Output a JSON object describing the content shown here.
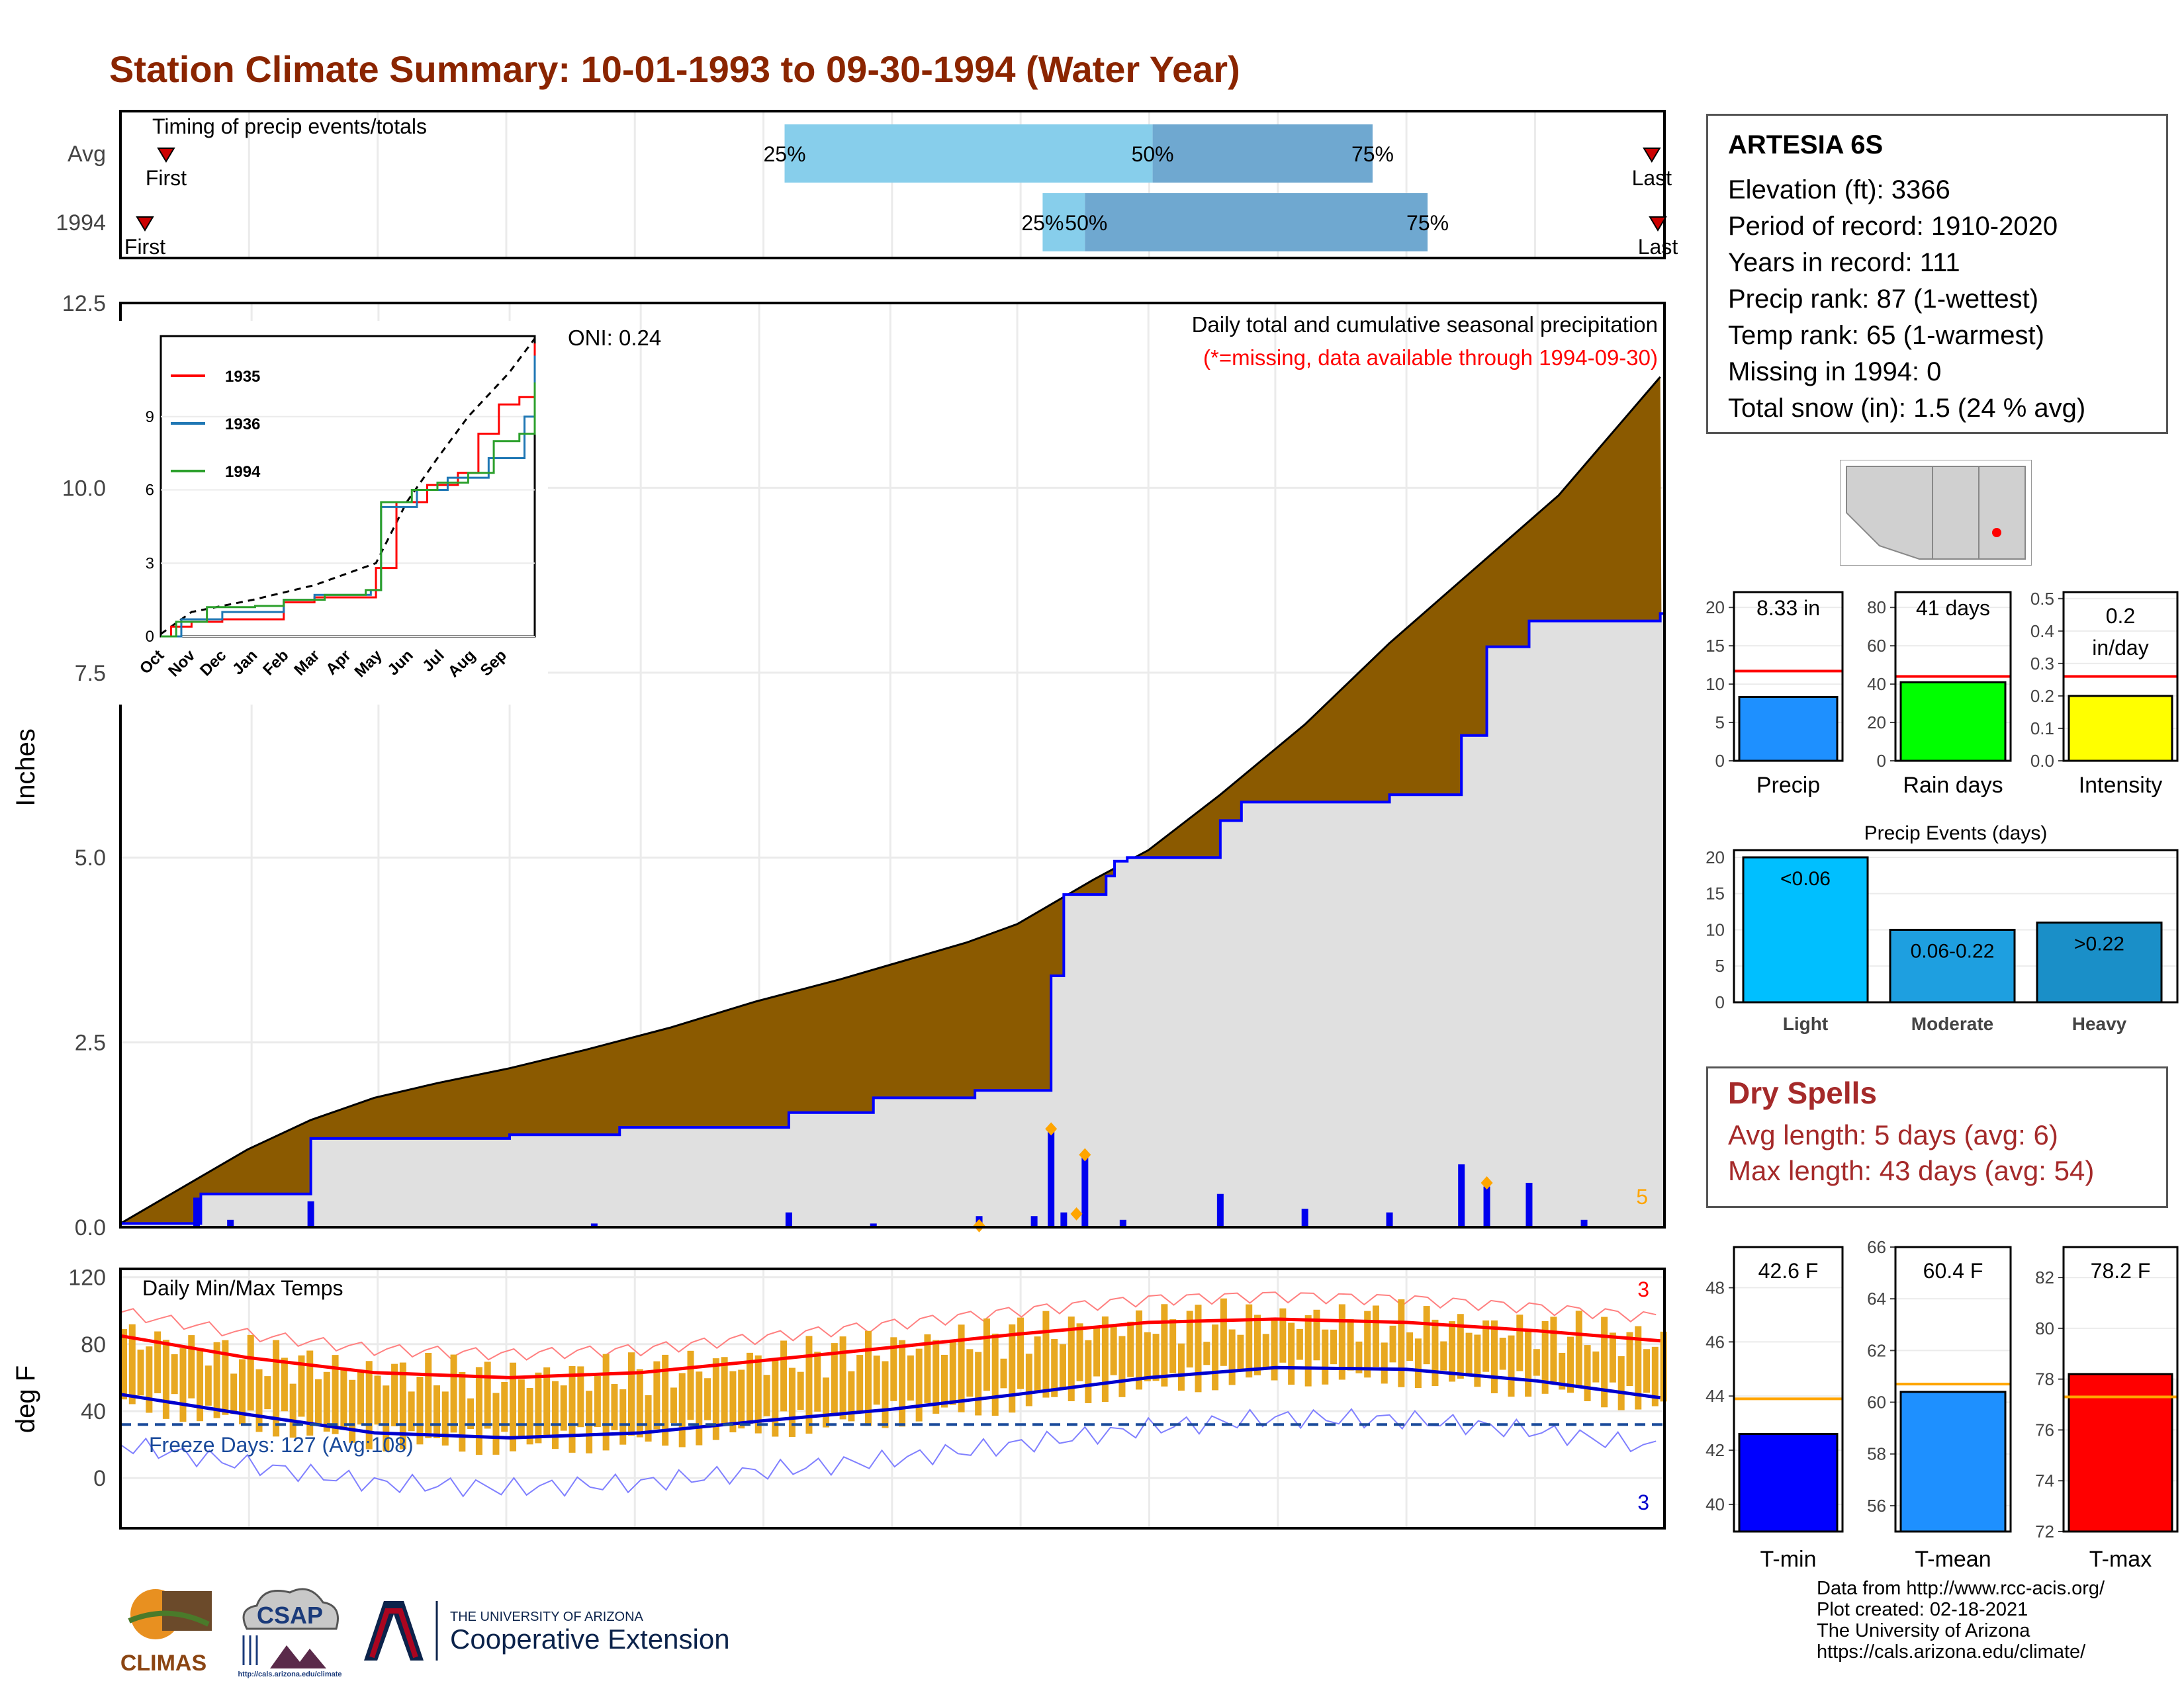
{
  "page_title": "Station Climate Summary: 10-01-1993 to 09-30-1994 (Water Year)",
  "station": {
    "name": "ARTESIA 6S",
    "lines": [
      "Elevation (ft): 3366",
      "Period of record: 1910-2020",
      "Years in record: 111",
      "Precip rank: 87 (1-wettest)",
      "Temp rank: 65 (1-warmest)",
      "Missing in 1994: 0",
      "Total snow (in): 1.5 (24 % avg)"
    ]
  },
  "dry_spells": {
    "title": "Dry Spells",
    "avg": "Avg length: 5 days (avg: 6)",
    "max": "Max length: 43 days (avg: 54)"
  },
  "credits": [
    "Data from http://www.rcc-acis.org/",
    "Plot created: 02-18-2021",
    "The University of Arizona",
    "https://cals.arizona.edu/climate/"
  ],
  "logos": {
    "climas": "CLIMAS",
    "csap": "CSAP",
    "csap_url": "http://cals.arizona.edu/climate",
    "ua_small": "THE UNIVERSITY OF ARIZONA",
    "ua_big": "Cooperative Extension"
  },
  "colors": {
    "title": "#8b2500",
    "brown": "#8b5a00",
    "gray_fill": "#e0e0e0",
    "precip_line": "#0000ff",
    "tmax_avg": "#ff0000",
    "tmin_avg": "#0000cd",
    "temp_bar": "#e8a820",
    "light_blue": "#87ceeb",
    "mid_blue": "#6fa8d0"
  },
  "chart_data": [
    {
      "id": "timing",
      "type": "bar",
      "title": "Timing of precip events/totals",
      "rows": [
        {
          "label": "Avg",
          "first": "First",
          "last": "Last",
          "p25": "25%",
          "p50": "50%",
          "p75": "75%",
          "first_day": 5,
          "last_day": 362,
          "q25": 157,
          "q50": 244,
          "q75": 296
        },
        {
          "label": "1994",
          "first": "First",
          "last": "Last",
          "p25": "25%",
          "p50": "50%",
          "p75": "75%",
          "first_day": 0,
          "last_day": 368,
          "q25": 218,
          "q50": 228,
          "q75": 309
        }
      ]
    },
    {
      "id": "precip",
      "type": "area",
      "title": "Daily total and cumulative seasonal precipitation",
      "subtitle": "(*=missing, data available through 1994-09-30)",
      "oni": "ONI: 0.24",
      "ylabel": "Inches",
      "ylim": [
        0,
        12.5
      ],
      "yticks": [
        0.0,
        2.5,
        5.0,
        7.5,
        10.0,
        12.5
      ],
      "ytick_labels": [
        "0.0",
        "2.5",
        "5.0",
        "7.5",
        "10.0",
        "12.5"
      ],
      "months": [
        "Oct",
        "Nov",
        "Dec",
        "Jan",
        "Feb",
        "Mar",
        "Apr",
        "May",
        "Jun",
        "Jul",
        "Aug",
        "Sep"
      ],
      "month_days": [
        0,
        31,
        61,
        92,
        123,
        151,
        182,
        212,
        243,
        273,
        304,
        335
      ],
      "corner_count": "5",
      "avg_cumulative": {
        "x": [
          0,
          15,
          30,
          45,
          60,
          75,
          92,
          110,
          130,
          150,
          170,
          182,
          200,
          212,
          230,
          243,
          260,
          280,
          300,
          320,
          340,
          355,
          364
        ],
        "y": [
          0.05,
          0.55,
          1.05,
          1.45,
          1.75,
          1.95,
          2.15,
          2.4,
          2.7,
          3.05,
          3.35,
          3.55,
          3.85,
          4.1,
          4.7,
          5.1,
          5.85,
          6.8,
          7.9,
          8.9,
          9.9,
          10.9,
          11.5
        ]
      },
      "obs_cumulative": {
        "x": [
          0,
          19,
          45,
          92,
          112,
          118,
          158,
          178,
          202,
          210,
          220,
          221,
          223,
          233,
          235,
          238,
          260,
          265,
          300,
          317,
          323,
          333,
          364
        ],
        "y": [
          0.05,
          0.45,
          1.2,
          1.25,
          1.25,
          1.35,
          1.55,
          1.75,
          1.85,
          1.85,
          3.4,
          3.4,
          4.5,
          4.75,
          4.95,
          5.0,
          5.5,
          5.75,
          5.85,
          6.65,
          7.85,
          8.2,
          8.3
        ]
      },
      "daily": {
        "x": [
          18,
          26,
          45,
          112,
          158,
          178,
          203,
          216,
          220,
          223,
          228,
          237,
          260,
          280,
          300,
          317,
          323,
          333,
          346
        ],
        "y": [
          0.4,
          0.1,
          0.35,
          0.05,
          0.2,
          0.05,
          0.15,
          0.15,
          1.35,
          0.2,
          0.95,
          0.1,
          0.45,
          0.25,
          0.2,
          0.85,
          0.55,
          0.6,
          0.1
        ]
      },
      "inset": {
        "series": [
          {
            "name": "1935",
            "color": "#ff0000"
          },
          {
            "name": "1936",
            "color": "#1f77b4"
          },
          {
            "name": "1994",
            "color": "#2ca02c"
          }
        ],
        "yticks": [
          "0",
          "3",
          "6",
          "9"
        ],
        "xticks": [
          "Oct",
          "Nov",
          "Dec",
          "Jan",
          "Feb",
          "Mar",
          "Apr",
          "May",
          "Jun",
          "Jul",
          "Aug",
          "Sep"
        ]
      }
    },
    {
      "id": "temps",
      "type": "bar",
      "title": "Daily Min/Max Temps",
      "ylabel": "deg F",
      "ylim": [
        -30,
        125
      ],
      "yticks": [
        0,
        40,
        80,
        120
      ],
      "freeze_label": "Freeze Days: 127 (Avg:108)",
      "freeze_line": 32,
      "top_count": "3",
      "bottom_count": "3",
      "months": [
        "Oct",
        "Nov",
        "Dec",
        "Jan",
        "Feb",
        "Mar",
        "Apr",
        "May",
        "Jun",
        "Jul",
        "Aug",
        "Sep"
      ],
      "avg_max": {
        "x": [
          0,
          30,
          60,
          92,
          123,
          151,
          182,
          212,
          243,
          273,
          304,
          335,
          364
        ],
        "y": [
          85,
          72,
          63,
          60,
          63,
          70,
          78,
          86,
          93,
          95,
          93,
          88,
          82
        ]
      },
      "avg_min": {
        "x": [
          0,
          30,
          60,
          92,
          123,
          151,
          182,
          212,
          243,
          273,
          304,
          335,
          364
        ],
        "y": [
          50,
          38,
          27,
          24,
          27,
          34,
          41,
          50,
          60,
          66,
          65,
          58,
          48
        ]
      }
    },
    {
      "id": "precip_summary",
      "type": "bar",
      "categories": [
        "Precip",
        "Rain days",
        "Intensity"
      ],
      "values": [
        8.33,
        41,
        0.2
      ],
      "avg": [
        11.7,
        44,
        0.26
      ],
      "value_labels": [
        "8.33 in",
        "41 days",
        "0.2 in/day"
      ],
      "bar_colors": [
        "#1e90ff",
        "#00ff00",
        "#ffff00"
      ],
      "ylims": [
        [
          0,
          22
        ],
        [
          0,
          88
        ],
        [
          0,
          0.52
        ]
      ],
      "yticks": [
        [
          "0",
          "5",
          "10",
          "15",
          "20"
        ],
        [
          "0",
          "20",
          "40",
          "60",
          "80"
        ],
        [
          "0.0",
          "0.1",
          "0.2",
          "0.3",
          "0.4",
          "0.5"
        ]
      ]
    },
    {
      "id": "precip_events",
      "type": "bar",
      "title": "Precip Events (days)",
      "categories": [
        "Light",
        "Moderate",
        "Heavy"
      ],
      "values": [
        20,
        10,
        11
      ],
      "bar_labels": [
        "<0.06",
        "0.06-0.22",
        ">0.22"
      ],
      "bar_colors": [
        "#00bfff",
        "#1e9fe0",
        "#1a8fc8"
      ],
      "ylim": [
        0,
        21
      ],
      "yticks": [
        "0",
        "5",
        "10",
        "15",
        "20"
      ]
    },
    {
      "id": "temp_summary",
      "type": "bar",
      "categories": [
        "T-min",
        "T-mean",
        "T-max"
      ],
      "values": [
        42.6,
        60.4,
        78.2
      ],
      "avg": [
        43.9,
        60.7,
        77.3
      ],
      "value_labels": [
        "42.6 F",
        "60.4 F",
        "78.2 F"
      ],
      "bar_colors": [
        "#0000ff",
        "#1e90ff",
        "#ff0000"
      ],
      "ylims": [
        [
          39,
          49.5
        ],
        [
          55,
          66
        ],
        [
          72,
          83.2
        ]
      ],
      "yticks": [
        [
          "40",
          "42",
          "44",
          "46",
          "48"
        ],
        [
          "56",
          "58",
          "60",
          "62",
          "64",
          "66"
        ],
        [
          "72",
          "74",
          "76",
          "78",
          "80",
          "82"
        ]
      ]
    }
  ]
}
